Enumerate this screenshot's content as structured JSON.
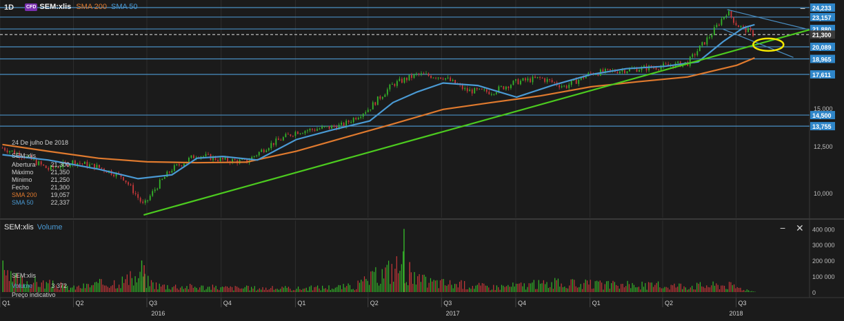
{
  "header": {
    "timeframe": "1D",
    "cfd_badge": "CFD",
    "symbol": "SEM:xlis",
    "sma200_label": "SMA 200",
    "sma50_label": "SMA 50"
  },
  "volume_panel": {
    "symbol": "SEM:xlis",
    "title": "Volume",
    "minimize_icon": "minus",
    "close_icon": "x"
  },
  "tooltip": {
    "date": "24 De julho De 2018",
    "symbol": "SEM:xlis",
    "rows": [
      {
        "label": "Abertura",
        "value": "21,300"
      },
      {
        "label": "Máximo",
        "value": "21,350"
      },
      {
        "label": "Mínimo",
        "value": "21,250"
      },
      {
        "label": "Fecho",
        "value": "21,300"
      },
      {
        "label": "SMA 200",
        "value": "19,057"
      },
      {
        "label": "SMA 50",
        "value": "22,337"
      }
    ]
  },
  "volume_tooltip": {
    "symbol": "SEM:xlis",
    "label": "Volume",
    "value": "3 372",
    "note": "Preço indicativo"
  },
  "colors": {
    "background": "#1b1b1b",
    "sma200": "#e07a2e",
    "sma50": "#4a9ad4",
    "trendline": "#4ccb1f",
    "level_line": "#4a8fc4",
    "label_bg": "#2f86c9",
    "up": "#35b52a",
    "down": "#c8383a",
    "ellipse": "#f2e600"
  },
  "chart_data": {
    "type": "line",
    "title": "",
    "price_axis": {
      "ticks": [
        "15,000",
        "12,500",
        "10,000"
      ],
      "tick_values": [
        15000,
        12500,
        10000
      ],
      "ylim": [
        8600,
        24700
      ]
    },
    "time_axis": {
      "quarters": [
        "Q1",
        "Q2",
        "Q3",
        "Q4",
        "Q1",
        "Q2",
        "Q3",
        "Q4",
        "Q1",
        "Q2",
        "Q3"
      ],
      "years": [
        "2016",
        "2017",
        "2018"
      ],
      "xlim": [
        "2016-01-01",
        "2018-09-30"
      ]
    },
    "price_levels": [
      {
        "label": "24,233",
        "value": 24233,
        "style": "solid"
      },
      {
        "label": "23,157",
        "value": 23157,
        "style": "solid"
      },
      {
        "label": "21,880",
        "value": 21880,
        "style": "solid"
      },
      {
        "label": "21,300",
        "value": 21300,
        "style": "dashed"
      },
      {
        "label": "20,089",
        "value": 20089,
        "style": "solid"
      },
      {
        "label": "18,965",
        "value": 18965,
        "style": "solid"
      },
      {
        "label": "17,611",
        "value": 17611,
        "style": "solid"
      },
      {
        "label": "14,500",
        "value": 14500,
        "style": "solid"
      },
      {
        "label": "13,755",
        "value": 13755,
        "style": "solid"
      }
    ],
    "series": [
      {
        "name": "SEM:xlis",
        "style": "candles",
        "x": [
          "2016-01-04",
          "2016-02-01",
          "2016-03-01",
          "2016-04-01",
          "2016-05-02",
          "2016-06-01",
          "2016-06-27",
          "2016-07-15",
          "2016-08-01",
          "2016-09-01",
          "2016-10-03",
          "2016-11-01",
          "2016-12-01",
          "2017-01-02",
          "2017-02-01",
          "2017-03-01",
          "2017-04-03",
          "2017-05-02",
          "2017-06-01",
          "2017-07-03",
          "2017-08-01",
          "2017-09-01",
          "2017-10-02",
          "2017-11-01",
          "2017-12-01",
          "2018-01-02",
          "2018-02-01",
          "2018-03-01",
          "2018-04-03",
          "2018-05-02",
          "2018-06-01",
          "2018-06-20",
          "2018-07-02",
          "2018-07-24"
        ],
        "values": [
          12400,
          11900,
          11200,
          11600,
          11300,
          10800,
          9400,
          10400,
          11200,
          12000,
          11700,
          11600,
          12600,
          13400,
          13600,
          13800,
          15000,
          16800,
          17600,
          17400,
          16300,
          16200,
          17000,
          17300,
          16600,
          17700,
          17900,
          18100,
          18300,
          18600,
          21400,
          23800,
          22300,
          21300
        ]
      },
      {
        "name": "SMA 200",
        "style": "line",
        "x": [
          "2016-01-04",
          "2016-03-01",
          "2016-05-02",
          "2016-07-01",
          "2016-09-01",
          "2016-11-01",
          "2017-01-02",
          "2017-03-01",
          "2017-05-02",
          "2017-07-03",
          "2017-09-01",
          "2017-11-01",
          "2018-01-02",
          "2018-03-01",
          "2018-05-02",
          "2018-07-02",
          "2018-07-24"
        ],
        "values": [
          12600,
          12200,
          11800,
          11600,
          11550,
          11580,
          12200,
          13000,
          13900,
          14900,
          15400,
          15900,
          16600,
          17000,
          17400,
          18400,
          19057
        ]
      },
      {
        "name": "SMA 50",
        "style": "line",
        "x": [
          "2016-01-04",
          "2016-03-01",
          "2016-05-02",
          "2016-06-20",
          "2016-08-01",
          "2016-09-01",
          "2016-10-03",
          "2016-11-15",
          "2017-01-02",
          "2017-02-15",
          "2017-04-03",
          "2017-05-02",
          "2017-06-01",
          "2017-07-03",
          "2017-08-15",
          "2017-10-02",
          "2017-11-15",
          "2018-01-02",
          "2018-02-15",
          "2018-04-03",
          "2018-05-15",
          "2018-06-15",
          "2018-07-10",
          "2018-07-24"
        ],
        "values": [
          12000,
          11700,
          11200,
          10700,
          10900,
          11800,
          11900,
          11700,
          12900,
          13500,
          14100,
          15400,
          16200,
          16900,
          16700,
          15800,
          16700,
          17600,
          18100,
          18300,
          18700,
          20600,
          22000,
          22337
        ]
      },
      {
        "name": "Volume",
        "style": "bars",
        "panel": "volume",
        "axis_ticks": [
          "400 000",
          "300 000",
          "200 000",
          "100 000",
          "0"
        ],
        "axis_values": [
          400000,
          300000,
          200000,
          100000,
          0
        ],
        "x": [
          "2016-01-04",
          "2016-04-01",
          "2016-06-24",
          "2016-06-27",
          "2016-07-15",
          "2016-10-03",
          "2017-01-02",
          "2017-03-15",
          "2017-05-15",
          "2017-05-22",
          "2017-06-15",
          "2017-09-01",
          "2017-11-15",
          "2018-01-15",
          "2018-03-15",
          "2018-05-15",
          "2018-06-20",
          "2018-07-24"
        ],
        "values": [
          200000,
          60000,
          200000,
          170000,
          90000,
          60000,
          50000,
          80000,
          400000,
          190000,
          140000,
          70000,
          120000,
          100000,
          90000,
          90000,
          100000,
          3372
        ]
      }
    ],
    "trendlines": [
      {
        "x": [
          "2016-06-27",
          "2018-09-30"
        ],
        "values": [
          9000,
          21800
        ],
        "color": "green"
      },
      {
        "x": [
          "2018-06-20",
          "2018-09-25"
        ],
        "values": [
          24000,
          21900
        ],
        "color": "blue"
      },
      {
        "x": [
          "2018-06-15",
          "2018-09-10"
        ],
        "values": [
          21850,
          19100
        ],
        "color": "blue"
      }
    ],
    "annotations": [
      {
        "type": "ellipse",
        "x": "2018-08-10",
        "y": 20300
      }
    ],
    "grid": false,
    "legend": "top-left"
  }
}
